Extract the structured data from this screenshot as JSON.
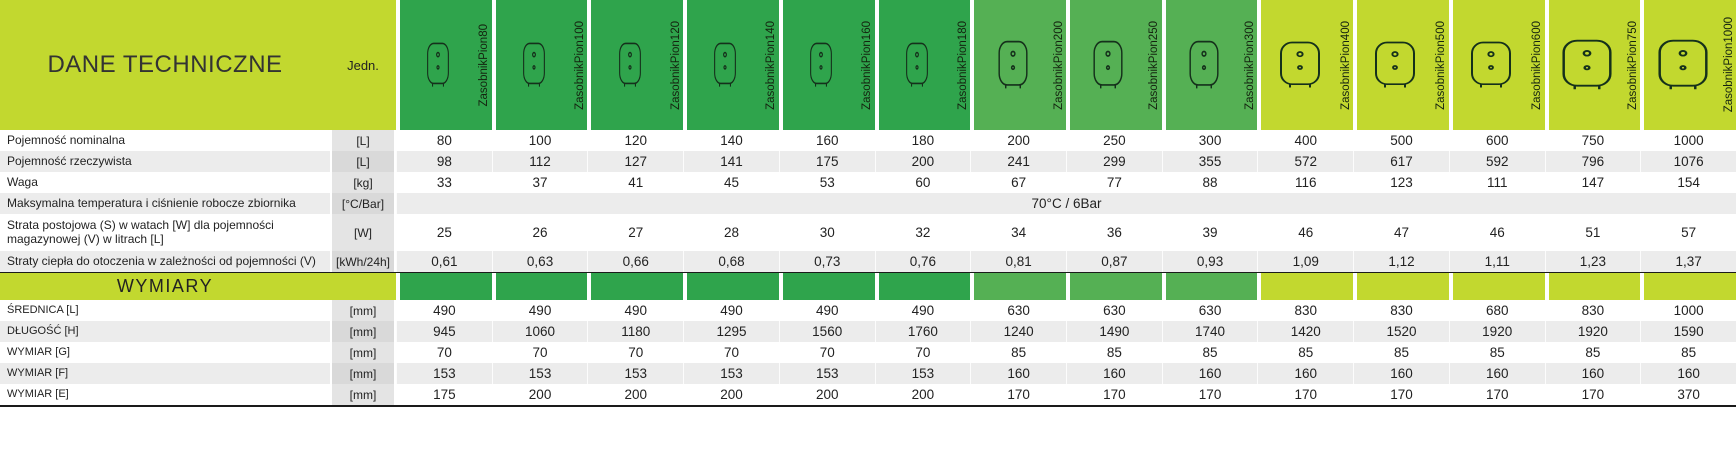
{
  "table": {
    "title": "DANE TECHNICZNE",
    "unit_header": "Jedn.",
    "products": [
      {
        "name": "ZasobnikPion80",
        "group": "dark-green"
      },
      {
        "name": "ZasobnikPion100",
        "group": "dark-green"
      },
      {
        "name": "ZasobnikPion120",
        "group": "dark-green"
      },
      {
        "name": "ZasobnikPion140",
        "group": "dark-green"
      },
      {
        "name": "ZasobnikPion160",
        "group": "dark-green"
      },
      {
        "name": "ZasobnikPion180",
        "group": "dark-green"
      },
      {
        "name": "ZasobnikPion200",
        "group": "mid-green"
      },
      {
        "name": "ZasobnikPion250",
        "group": "mid-green"
      },
      {
        "name": "ZasobnikPion300",
        "group": "mid-green"
      },
      {
        "name": "ZasobnikPion400",
        "group": "lime"
      },
      {
        "name": "ZasobnikPion500",
        "group": "lime"
      },
      {
        "name": "ZasobnikPion600",
        "group": "lime"
      },
      {
        "name": "ZasobnikPion750",
        "group": "lime"
      },
      {
        "name": "ZasobnikPion1000",
        "group": "lime"
      }
    ],
    "rows": [
      {
        "type": "data",
        "label": "Pojemność nominalna",
        "unit": "[L]",
        "values": [
          "80",
          "100",
          "120",
          "140",
          "160",
          "180",
          "200",
          "250",
          "300",
          "400",
          "500",
          "600",
          "750",
          "1000"
        ]
      },
      {
        "type": "data",
        "label": "Pojemność rzeczywista",
        "unit": "[L]",
        "values": [
          "98",
          "112",
          "127",
          "141",
          "175",
          "200",
          "241",
          "299",
          "355",
          "572",
          "617",
          "592",
          "796",
          "1076"
        ]
      },
      {
        "type": "data",
        "label": "Waga",
        "unit": "[kg]",
        "values": [
          "33",
          "37",
          "41",
          "45",
          "53",
          "60",
          "67",
          "77",
          "88",
          "116",
          "123",
          "111",
          "147",
          "154"
        ]
      },
      {
        "type": "span",
        "label": "Maksymalna temperatura i ciśnienie robocze zbiornika",
        "unit": "[°C/Bar]",
        "value": "70°C / 6Bar"
      },
      {
        "type": "data",
        "label": "Strata postojowa (S) w watach [W] dla pojemności magazynowej (V) w litrach [L]",
        "unit": "[W]",
        "values": [
          "25",
          "26",
          "27",
          "28",
          "30",
          "32",
          "34",
          "36",
          "39",
          "46",
          "47",
          "46",
          "51",
          "57"
        ]
      },
      {
        "type": "data",
        "label": "Straty ciepła do otoczenia w zależności od pojemności (V)",
        "unit": "[kWh/24h]",
        "values": [
          "0,61",
          "0,63",
          "0,66",
          "0,68",
          "0,73",
          "0,76",
          "0,81",
          "0,87",
          "0,93",
          "1,09",
          "1,12",
          "1,11",
          "1,23",
          "1,37"
        ]
      },
      {
        "type": "section",
        "label": "WYMIARY"
      },
      {
        "type": "data",
        "label": "ŚREDNICA [L]",
        "unit": "[mm]",
        "values": [
          "490",
          "490",
          "490",
          "490",
          "490",
          "490",
          "630",
          "630",
          "630",
          "830",
          "830",
          "680",
          "830",
          "1000"
        ]
      },
      {
        "type": "data",
        "label": "DŁUGOŚĆ [H]",
        "unit": "[mm]",
        "values": [
          "945",
          "1060",
          "1180",
          "1295",
          "1560",
          "1760",
          "1240",
          "1490",
          "1740",
          "1420",
          "1520",
          "1920",
          "1920",
          "1590"
        ]
      },
      {
        "type": "data",
        "label": "WYMIAR [G]",
        "unit": "[mm]",
        "values": [
          "70",
          "70",
          "70",
          "70",
          "70",
          "70",
          "85",
          "85",
          "85",
          "85",
          "85",
          "85",
          "85",
          "85"
        ]
      },
      {
        "type": "data",
        "label": "WYMIAR [F]",
        "unit": "[mm]",
        "values": [
          "153",
          "153",
          "153",
          "153",
          "153",
          "153",
          "160",
          "160",
          "160",
          "160",
          "160",
          "160",
          "160",
          "160"
        ]
      },
      {
        "type": "data",
        "label": "WYMIAR [E]",
        "unit": "[mm]",
        "values": [
          "175",
          "200",
          "200",
          "200",
          "200",
          "200",
          "170",
          "170",
          "170",
          "170",
          "170",
          "170",
          "170",
          "370"
        ]
      }
    ]
  },
  "icons": {
    "tank": "tank-icon"
  },
  "colors": {
    "lime": "#c2d82f",
    "green_dark": "#2fa44c",
    "green_mid": "#55b054",
    "row_shade": "#ececec",
    "unit_bg": "#e4e4e4",
    "unit_bg_shade": "#d9d9d9",
    "line": "#1a1a1a",
    "text": "#222222"
  }
}
